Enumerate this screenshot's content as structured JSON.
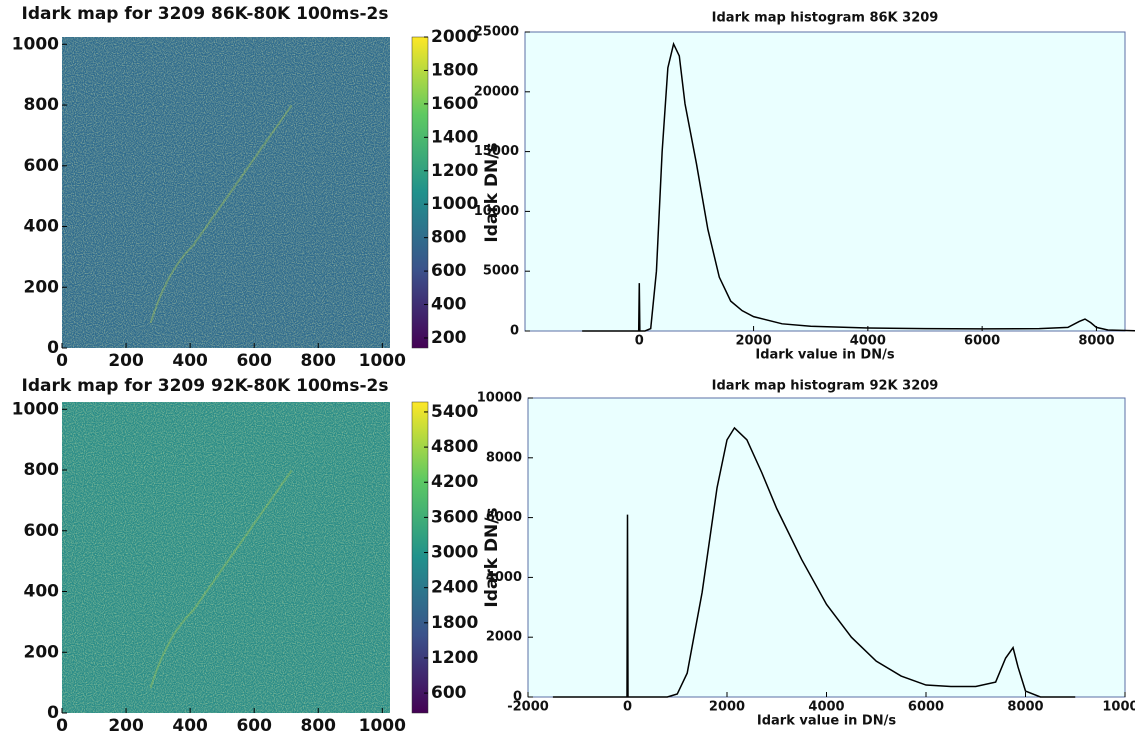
{
  "chart_data": [
    {
      "type": "heatmap",
      "title": "Idark map for 3209 86K-80K 100ms-2s",
      "xlim": [
        0,
        1024
      ],
      "ylim": [
        0,
        1024
      ],
      "xticks": [
        0,
        200,
        400,
        600,
        800,
        1000
      ],
      "yticks": [
        0,
        200,
        400,
        600,
        800,
        1000
      ],
      "colorbar_label": "Idark DN/s",
      "clim": [
        140,
        2000
      ],
      "cticks": [
        200,
        400,
        600,
        800,
        1000,
        1200,
        1400,
        1600,
        1800,
        2000
      ],
      "colors": [
        "#440154",
        "#3b528b",
        "#21918c",
        "#5ec962",
        "#fde725"
      ],
      "color": "#2f6b8e"
    },
    {
      "type": "line",
      "title": "Idark map histogram 86K 3209",
      "xlabel": "Idark value in DN/s",
      "x": [
        -1000,
        -10,
        0,
        10,
        100,
        200,
        300,
        400,
        500,
        600,
        700,
        800,
        900,
        1000,
        1200,
        1400,
        1600,
        1800,
        2000,
        2500,
        3000,
        4000,
        5000,
        6000,
        7000,
        7500,
        7700,
        7800,
        7900,
        8000,
        8200,
        8800
      ],
      "values": [
        0,
        0,
        4000,
        0,
        0,
        200,
        5000,
        15000,
        22000,
        24000,
        23000,
        19000,
        16500,
        14000,
        8500,
        4500,
        2500,
        1700,
        1200,
        600,
        400,
        250,
        200,
        180,
        200,
        300,
        800,
        1000,
        700,
        300,
        80,
        0
      ],
      "xlim": [
        -2000,
        8500
      ],
      "ylim": [
        0,
        25000
      ],
      "xticks": [
        0,
        2000,
        4000,
        6000,
        8000
      ],
      "yticks": [
        0,
        5000,
        10000,
        15000,
        20000,
        25000
      ],
      "color": "#000000"
    },
    {
      "type": "heatmap",
      "title": "Idark map for 3209 92K-80K 100ms-2s",
      "xlim": [
        0,
        1024
      ],
      "ylim": [
        0,
        1024
      ],
      "xticks": [
        0,
        200,
        400,
        600,
        800,
        1000
      ],
      "yticks": [
        0,
        200,
        400,
        600,
        800,
        1000
      ],
      "colorbar_label": "Idark DN/s",
      "clim": [
        260,
        5570
      ],
      "cticks": [
        600,
        1200,
        1800,
        2400,
        3000,
        3600,
        4200,
        4800,
        5400
      ],
      "colors": [
        "#440154",
        "#3b528b",
        "#21918c",
        "#5ec962",
        "#fde725"
      ],
      "color": "#2a8c88"
    },
    {
      "type": "line",
      "title": "Idark map histogram 92K 3209",
      "xlabel": "Idark value in DN/s",
      "x": [
        -1500,
        -10,
        0,
        10,
        800,
        1000,
        1200,
        1500,
        1800,
        2000,
        2150,
        2400,
        2700,
        3000,
        3500,
        4000,
        4500,
        5000,
        5500,
        6000,
        6500,
        7000,
        7400,
        7600,
        7750,
        7850,
        8000,
        8300,
        9000
      ],
      "values": [
        0,
        0,
        6100,
        0,
        0,
        100,
        800,
        3500,
        7000,
        8600,
        9000,
        8600,
        7500,
        6300,
        4600,
        3100,
        2000,
        1200,
        700,
        400,
        350,
        350,
        500,
        1300,
        1650,
        1000,
        200,
        0,
        0
      ],
      "xlim": [
        -2000,
        10000
      ],
      "ylim": [
        0,
        10000
      ],
      "xticks": [
        -2000,
        0,
        2000,
        4000,
        6000,
        8000,
        10000
      ],
      "yticks": [
        0,
        2000,
        4000,
        6000,
        8000,
        10000
      ],
      "color": "#000000"
    }
  ]
}
